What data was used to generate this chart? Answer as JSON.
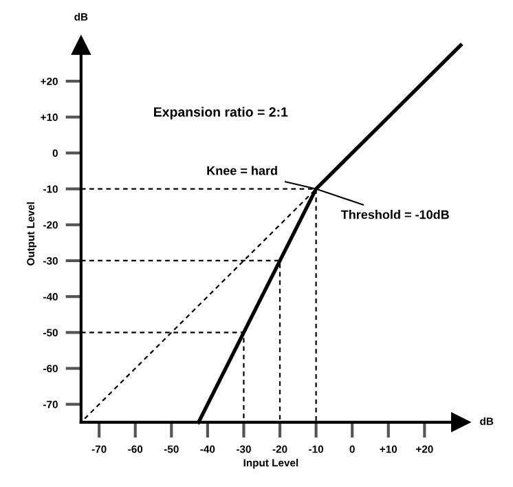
{
  "chart_data": {
    "type": "line",
    "xlabel": "Input Level",
    "ylabel": "Output Level",
    "series": [
      {
        "color": "#000000",
        "line_style": "solid",
        "x": [
          -42.5,
          -10,
          30
        ],
        "values": [
          -75,
          -10,
          30
        ]
      },
      {
        "color": "#000000",
        "type": "line",
        "line_style": "dashed",
        "x": [
          -74,
          -10
        ],
        "values": [
          -74,
          -10
        ]
      },
      {
        "color": "#000000",
        "type": "line",
        "line_style": "dashed",
        "x": [
          -75,
          -10,
          -10
        ],
        "values": [
          -10,
          -10,
          -75
        ]
      },
      {
        "color": "#000000",
        "type": "line",
        "line_style": "dashed",
        "x": [
          -75,
          -20,
          -20
        ],
        "values": [
          -30,
          -30,
          -75
        ]
      },
      {
        "color": "#000000",
        "type": "line",
        "line_style": "dashed",
        "x": [
          -75,
          -30,
          -30
        ],
        "values": [
          -50,
          -50,
          -75
        ]
      }
    ],
    "xlim": [
      -75,
      30
    ],
    "ylim": [
      -75,
      30
    ],
    "xticks": [
      -70,
      -60,
      -50,
      -40,
      -30,
      -20,
      -10,
      0,
      {
        "value": 10,
        "label": "+10"
      },
      {
        "value": 20,
        "label": "+20"
      }
    ],
    "yticks": [
      -70,
      -60,
      -50,
      -40,
      -30,
      -20,
      -10,
      0,
      {
        "value": 10,
        "label": "+10"
      },
      {
        "value": 20,
        "label": "+20"
      }
    ],
    "annotations": [
      "Expansion ratio = 2:1",
      {
        "text": "Knee = hard",
        "x": -10,
        "y": -10
      },
      {
        "text": "Threshold = -10dB",
        "x": -10,
        "y": -10
      },
      "dB",
      "dB"
    ],
    "grid": false,
    "legend": false,
    "marker": "none"
  }
}
